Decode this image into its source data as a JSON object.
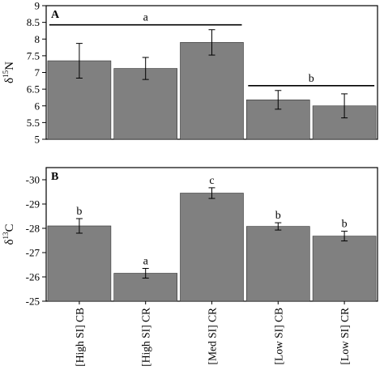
{
  "chart_data": [
    {
      "type": "bar",
      "panel_label": "A",
      "ylabel": "δ",
      "ylabel_sup": "15",
      "ylabel_suffix": "N",
      "ylim": [
        5,
        9
      ],
      "yticks": [
        5,
        5.5,
        6,
        6.5,
        7,
        7.5,
        8,
        8.5,
        9
      ],
      "ytick_labels": [
        "5",
        "5.5",
        "6",
        "6.5",
        "7",
        "7.5",
        "8",
        "8.5",
        "9"
      ],
      "categories": [
        "[High SI] CB",
        "[High SI] CR",
        "[Med SI] CR",
        "[Low SI] CB",
        "[Low SI] CR"
      ],
      "values": [
        7.35,
        7.12,
        7.9,
        6.18,
        6.0
      ],
      "errors": [
        0.52,
        0.33,
        0.38,
        0.28,
        0.36
      ],
      "bar_color": "#808080",
      "groups": [
        {
          "label": "a",
          "from": 0,
          "to": 2
        },
        {
          "label": "b",
          "from": 3,
          "to": 4
        }
      ]
    },
    {
      "type": "bar",
      "panel_label": "B",
      "ylabel": "δ",
      "ylabel_sup": "13",
      "ylabel_suffix": "C",
      "ylim": [
        -25,
        -30.5
      ],
      "inverted": true,
      "yticks": [
        -25,
        -26,
        -27,
        -28,
        -29,
        -30
      ],
      "ytick_labels": [
        "-25",
        "-26",
        "-27",
        "-28",
        "-29",
        "-30"
      ],
      "categories": [
        "[High SI] CB",
        "[High SI] CR",
        "[Med SI] CR",
        "[Low SI] CB",
        "[Low SI] CR"
      ],
      "values": [
        -28.1,
        -26.15,
        -29.45,
        -28.08,
        -27.68
      ],
      "errors": [
        0.3,
        0.2,
        0.22,
        0.15,
        0.2
      ],
      "letters": [
        "b",
        "a",
        "c",
        "b",
        "b"
      ],
      "bar_color": "#808080"
    }
  ]
}
